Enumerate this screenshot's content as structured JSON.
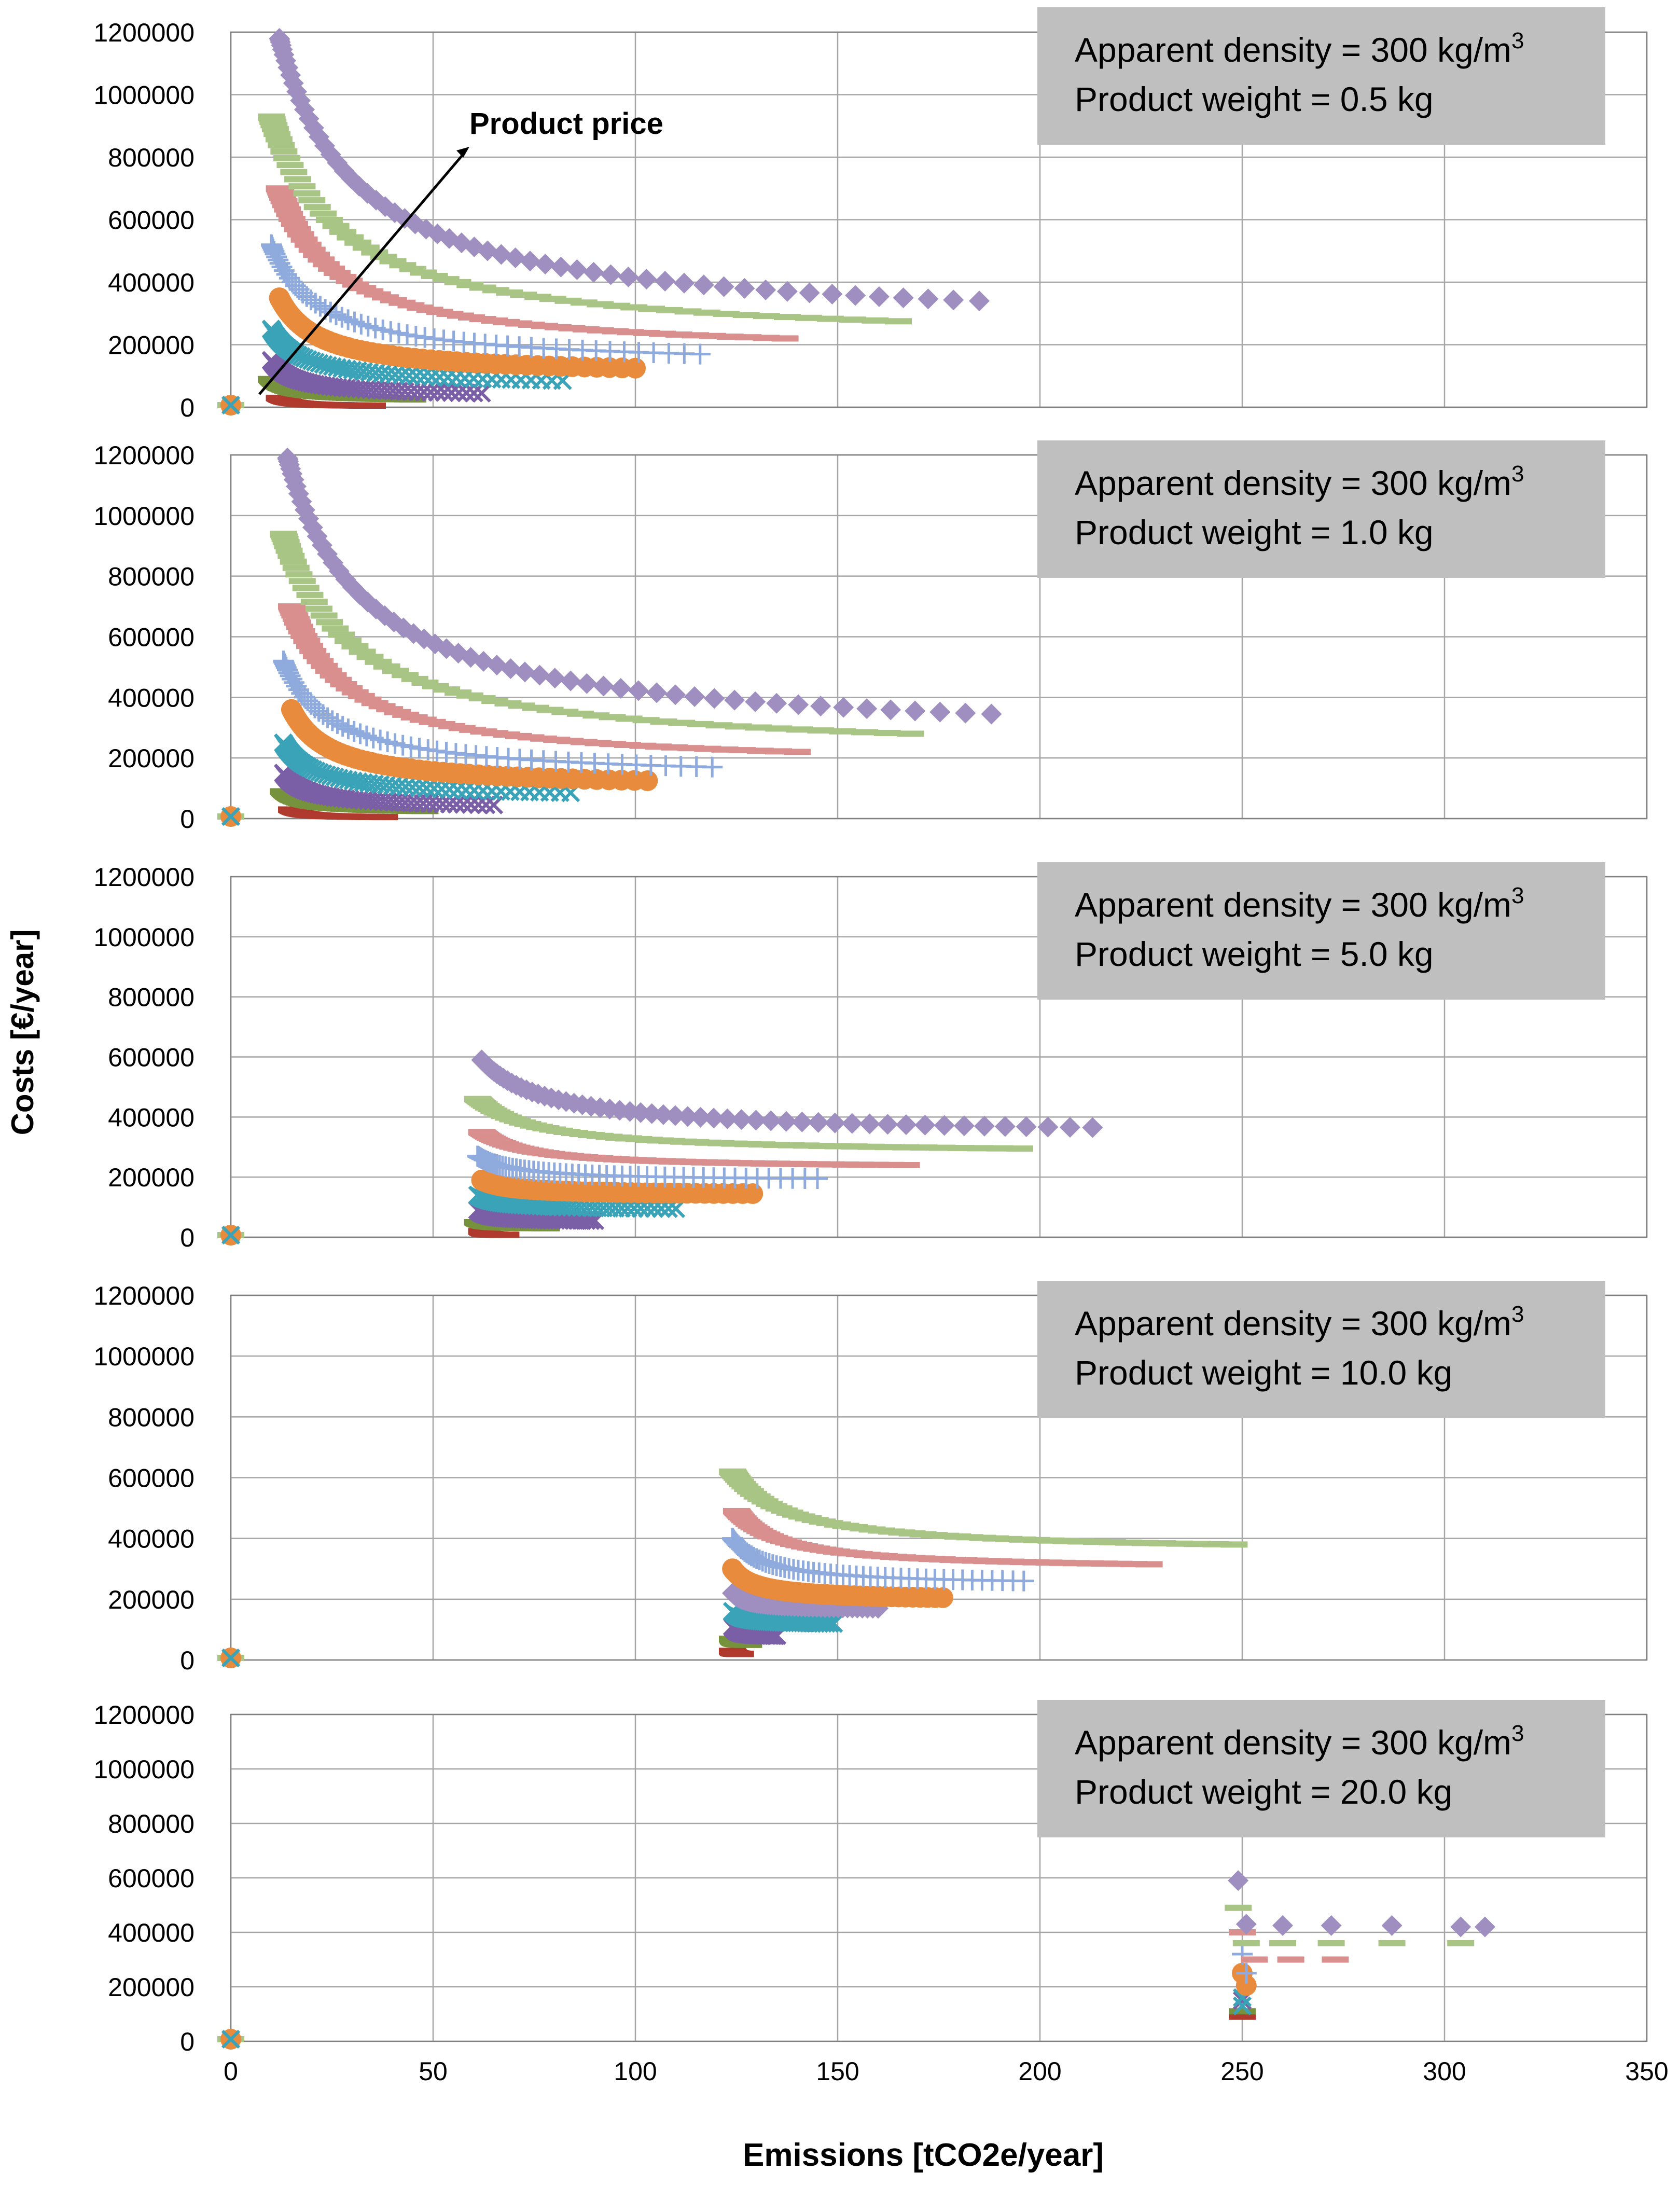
{
  "figure": {
    "ylabel": "Costs [€/year]",
    "xlabel": "Emissions  [tCO2e/year]",
    "annotation": "Product price"
  },
  "colors": {
    "gridline": "#a6a6a6",
    "axis": "#808080",
    "box": "#bfbfbf",
    "purple_diamond": "#9e8fc0",
    "green_dash": "#a9c585",
    "red_dash": "#d98f8e",
    "blue_plus": "#8faadc",
    "orange_circle": "#e88b3c",
    "teal_x": "#3aa3b8",
    "darkpurple_x": "#7a5fa6",
    "dark_green": "#76923c",
    "dark_red": "#b03a2e",
    "dark_blue": "#4f6fa8"
  },
  "chart_data": [
    {
      "type": "scatter",
      "label_line1": "Apparent density = 300 kg/m",
      "label_sup": "3",
      "label_line2": "Product weight    = 0.5 kg",
      "xlim": [
        0,
        350
      ],
      "ylim": [
        0,
        1200000
      ],
      "xticks": [
        0,
        50,
        100,
        150,
        200,
        250,
        300,
        350
      ],
      "yticks": [
        0,
        200000,
        400000,
        600000,
        800000,
        1000000,
        1200000
      ],
      "series": [
        {
          "name": "purple diamond",
          "marker": "diamond",
          "color": "#9e8fc0",
          "x0": 12,
          "x1": 185,
          "ymax": 1180000,
          "ymin": 340000
        },
        {
          "name": "green dash",
          "marker": "dash",
          "color": "#a9c585",
          "x0": 10,
          "x1": 165,
          "ymax": 930000,
          "ymin": 275000
        },
        {
          "name": "red dash",
          "marker": "dash",
          "color": "#d98f8e",
          "x0": 12,
          "x1": 137,
          "ymax": 700000,
          "ymin": 220000
        },
        {
          "name": "blue plus",
          "marker": "plus",
          "color": "#8faadc",
          "x0": 10,
          "x1": 116,
          "ymax": 520000,
          "ymin": 170000
        },
        {
          "name": "orange circle",
          "marker": "circle",
          "color": "#e88b3c",
          "x0": 12,
          "x1": 100,
          "ymax": 350000,
          "ymin": 125000
        },
        {
          "name": "teal x",
          "marker": "x",
          "color": "#3aa3b8",
          "x0": 10,
          "x1": 82,
          "ymax": 250000,
          "ymin": 85000
        },
        {
          "name": "dark purple x",
          "marker": "x",
          "color": "#7a5fa6",
          "x0": 10,
          "x1": 62,
          "ymax": 150000,
          "ymin": 45000
        },
        {
          "name": "green dash low",
          "marker": "dash",
          "color": "#76923c",
          "x0": 10,
          "x1": 45,
          "ymax": 90000,
          "ymin": 25000
        },
        {
          "name": "red dash low",
          "marker": "dash",
          "color": "#b03a2e",
          "x0": 12,
          "x1": 35,
          "ymax": 30000,
          "ymin": 5000
        }
      ]
    },
    {
      "type": "scatter",
      "label_line1": "Apparent density = 300 kg/m",
      "label_sup": "3",
      "label_line2": "Product weight    = 1.0 kg",
      "xlim": [
        0,
        350
      ],
      "ylim": [
        0,
        1200000
      ],
      "xticks": [
        0,
        50,
        100,
        150,
        200,
        250,
        300,
        350
      ],
      "yticks": [
        0,
        200000,
        400000,
        600000,
        800000,
        1000000,
        1200000
      ],
      "series": [
        {
          "name": "purple diamond",
          "marker": "diamond",
          "color": "#9e8fc0",
          "x0": 14,
          "x1": 188,
          "ymax": 1190000,
          "ymin": 345000
        },
        {
          "name": "green dash",
          "marker": "dash",
          "color": "#a9c585",
          "x0": 13,
          "x1": 168,
          "ymax": 940000,
          "ymin": 280000
        },
        {
          "name": "red dash",
          "marker": "dash",
          "color": "#d98f8e",
          "x0": 15,
          "x1": 140,
          "ymax": 700000,
          "ymin": 220000
        },
        {
          "name": "blue plus",
          "marker": "plus",
          "color": "#8faadc",
          "x0": 13,
          "x1": 119,
          "ymax": 520000,
          "ymin": 170000
        },
        {
          "name": "orange circle",
          "marker": "circle",
          "color": "#e88b3c",
          "x0": 15,
          "x1": 103,
          "ymax": 360000,
          "ymin": 125000
        },
        {
          "name": "teal x",
          "marker": "x",
          "color": "#3aa3b8",
          "x0": 13,
          "x1": 84,
          "ymax": 250000,
          "ymin": 85000
        },
        {
          "name": "dark purple x",
          "marker": "x",
          "color": "#7a5fa6",
          "x0": 13,
          "x1": 65,
          "ymax": 150000,
          "ymin": 45000
        },
        {
          "name": "green dash low",
          "marker": "dash",
          "color": "#76923c",
          "x0": 13,
          "x1": 48,
          "ymax": 90000,
          "ymin": 25000
        },
        {
          "name": "red dash low",
          "marker": "dash",
          "color": "#b03a2e",
          "x0": 15,
          "x1": 38,
          "ymax": 30000,
          "ymin": 5000
        }
      ]
    },
    {
      "type": "scatter",
      "label_line1": "Apparent density = 300 kg/m",
      "label_sup": "3",
      "label_line2": "Product weight    = 5.0 kg",
      "xlim": [
        0,
        350
      ],
      "ylim": [
        0,
        1200000
      ],
      "xticks": [
        0,
        50,
        100,
        150,
        200,
        250,
        300,
        350
      ],
      "yticks": [
        0,
        200000,
        400000,
        600000,
        800000,
        1000000,
        1200000
      ],
      "series": [
        {
          "name": "purple diamond",
          "marker": "diamond",
          "color": "#9e8fc0",
          "x0": 62,
          "x1": 213,
          "ymax": 590000,
          "ymin": 365000
        },
        {
          "name": "green dash",
          "marker": "dash",
          "color": "#a9c585",
          "x0": 61,
          "x1": 195,
          "ymax": 460000,
          "ymin": 295000
        },
        {
          "name": "red dash",
          "marker": "dash",
          "color": "#d98f8e",
          "x0": 62,
          "x1": 167,
          "ymax": 350000,
          "ymin": 240000
        },
        {
          "name": "blue plus",
          "marker": "plus",
          "color": "#8faadc",
          "x0": 61,
          "x1": 145,
          "ymax": 270000,
          "ymin": 195000
        },
        {
          "name": "orange circle",
          "marker": "circle",
          "color": "#e88b3c",
          "x0": 62,
          "x1": 129,
          "ymax": 190000,
          "ymin": 145000
        },
        {
          "name": "teal x",
          "marker": "x",
          "color": "#3aa3b8",
          "x0": 61,
          "x1": 110,
          "ymax": 140000,
          "ymin": 95000
        },
        {
          "name": "dark purple x",
          "marker": "x",
          "color": "#7a5fa6",
          "x0": 61,
          "x1": 90,
          "ymax": 90000,
          "ymin": 55000
        },
        {
          "name": "green dash low",
          "marker": "dash",
          "color": "#76923c",
          "x0": 61,
          "x1": 78,
          "ymax": 50000,
          "ymin": 30000
        },
        {
          "name": "red dash low",
          "marker": "dash",
          "color": "#b03a2e",
          "x0": 62,
          "x1": 68,
          "ymax": 20000,
          "ymin": 8000
        }
      ]
    },
    {
      "type": "scatter",
      "label_line1": "Apparent density = 300 kg/m",
      "label_sup": "3",
      "label_line2": "Product weight    = 10.0 kg",
      "xlim": [
        0,
        350
      ],
      "ylim": [
        0,
        1200000
      ],
      "xticks": [
        0,
        50,
        100,
        150,
        200,
        250,
        300,
        350
      ],
      "yticks": [
        0,
        200000,
        400000,
        600000,
        800000,
        1000000,
        1200000
      ],
      "series": [
        {
          "name": "green dash",
          "marker": "dash",
          "color": "#a9c585",
          "x0": 124,
          "x1": 248,
          "ymax": 620000,
          "ymin": 380000
        },
        {
          "name": "red dash",
          "marker": "dash",
          "color": "#d98f8e",
          "x0": 125,
          "x1": 227,
          "ymax": 490000,
          "ymin": 315000
        },
        {
          "name": "blue plus",
          "marker": "plus",
          "color": "#8faadc",
          "x0": 124,
          "x1": 196,
          "ymax": 400000,
          "ymin": 260000
        },
        {
          "name": "orange circle",
          "marker": "circle",
          "color": "#e88b3c",
          "x0": 124,
          "x1": 176,
          "ymax": 300000,
          "ymin": 205000
        },
        {
          "name": "purple diamond",
          "marker": "diamond",
          "color": "#9e8fc0",
          "x0": 124,
          "x1": 160,
          "ymax": 220000,
          "ymin": 170000
        },
        {
          "name": "teal x",
          "marker": "x",
          "color": "#3aa3b8",
          "x0": 124,
          "x1": 149,
          "ymax": 160000,
          "ymin": 120000
        },
        {
          "name": "dark purple x",
          "marker": "x",
          "color": "#7a5fa6",
          "x0": 124,
          "x1": 135,
          "ymax": 110000,
          "ymin": 80000
        },
        {
          "name": "green dash low",
          "marker": "dash",
          "color": "#76923c",
          "x0": 124,
          "x1": 128,
          "ymax": 70000,
          "ymin": 50000
        },
        {
          "name": "red dash low",
          "marker": "dash",
          "color": "#b03a2e",
          "x0": 124,
          "x1": 126,
          "ymax": 30000,
          "ymin": 20000
        }
      ]
    },
    {
      "type": "scatter",
      "label_line1": "Apparent density = 300 kg/m",
      "label_sup": "3",
      "label_line2": "Product weight    = 20.0 kg",
      "xlim": [
        0,
        350
      ],
      "ylim": [
        0,
        1200000
      ],
      "xticks": [
        0,
        50,
        100,
        150,
        200,
        250,
        300,
        350
      ],
      "yticks": [
        0,
        200000,
        400000,
        600000,
        800000,
        1000000,
        1200000
      ],
      "points": [
        {
          "name": "purple diamond",
          "marker": "diamond",
          "color": "#9e8fc0",
          "x": [
            249,
            251,
            260,
            272,
            287,
            304,
            310
          ],
          "y": [
            590000,
            430000,
            425000,
            425000,
            425000,
            420000,
            420000
          ]
        },
        {
          "name": "green dash",
          "marker": "dash",
          "color": "#a9c585",
          "x": [
            249,
            251,
            260,
            272,
            287,
            304
          ],
          "y": [
            490000,
            360000,
            360000,
            360000,
            360000,
            360000
          ]
        },
        {
          "name": "red dash",
          "marker": "dash",
          "color": "#d98f8e",
          "x": [
            250,
            253,
            262,
            273
          ],
          "y": [
            400000,
            300000,
            300000,
            300000
          ]
        },
        {
          "name": "blue plus",
          "marker": "plus",
          "color": "#8faadc",
          "x": [
            250,
            251
          ],
          "y": [
            320000,
            250000
          ]
        },
        {
          "name": "orange circle",
          "marker": "circle",
          "color": "#e88b3c",
          "x": [
            250,
            251
          ],
          "y": [
            250000,
            205000
          ]
        },
        {
          "name": "teal x",
          "marker": "x",
          "color": "#3aa3b8",
          "x": [
            250,
            250
          ],
          "y": [
            160000,
            130000
          ]
        },
        {
          "name": "dark purple x",
          "marker": "x",
          "color": "#7a5fa6",
          "x": [
            250
          ],
          "y": [
            150000
          ]
        },
        {
          "name": "green dash low",
          "marker": "dash",
          "color": "#76923c",
          "x": [
            250
          ],
          "y": [
            110000
          ]
        },
        {
          "name": "red dash low",
          "marker": "dash",
          "color": "#b03a2e",
          "x": [
            250
          ],
          "y": [
            90000
          ]
        }
      ]
    }
  ]
}
